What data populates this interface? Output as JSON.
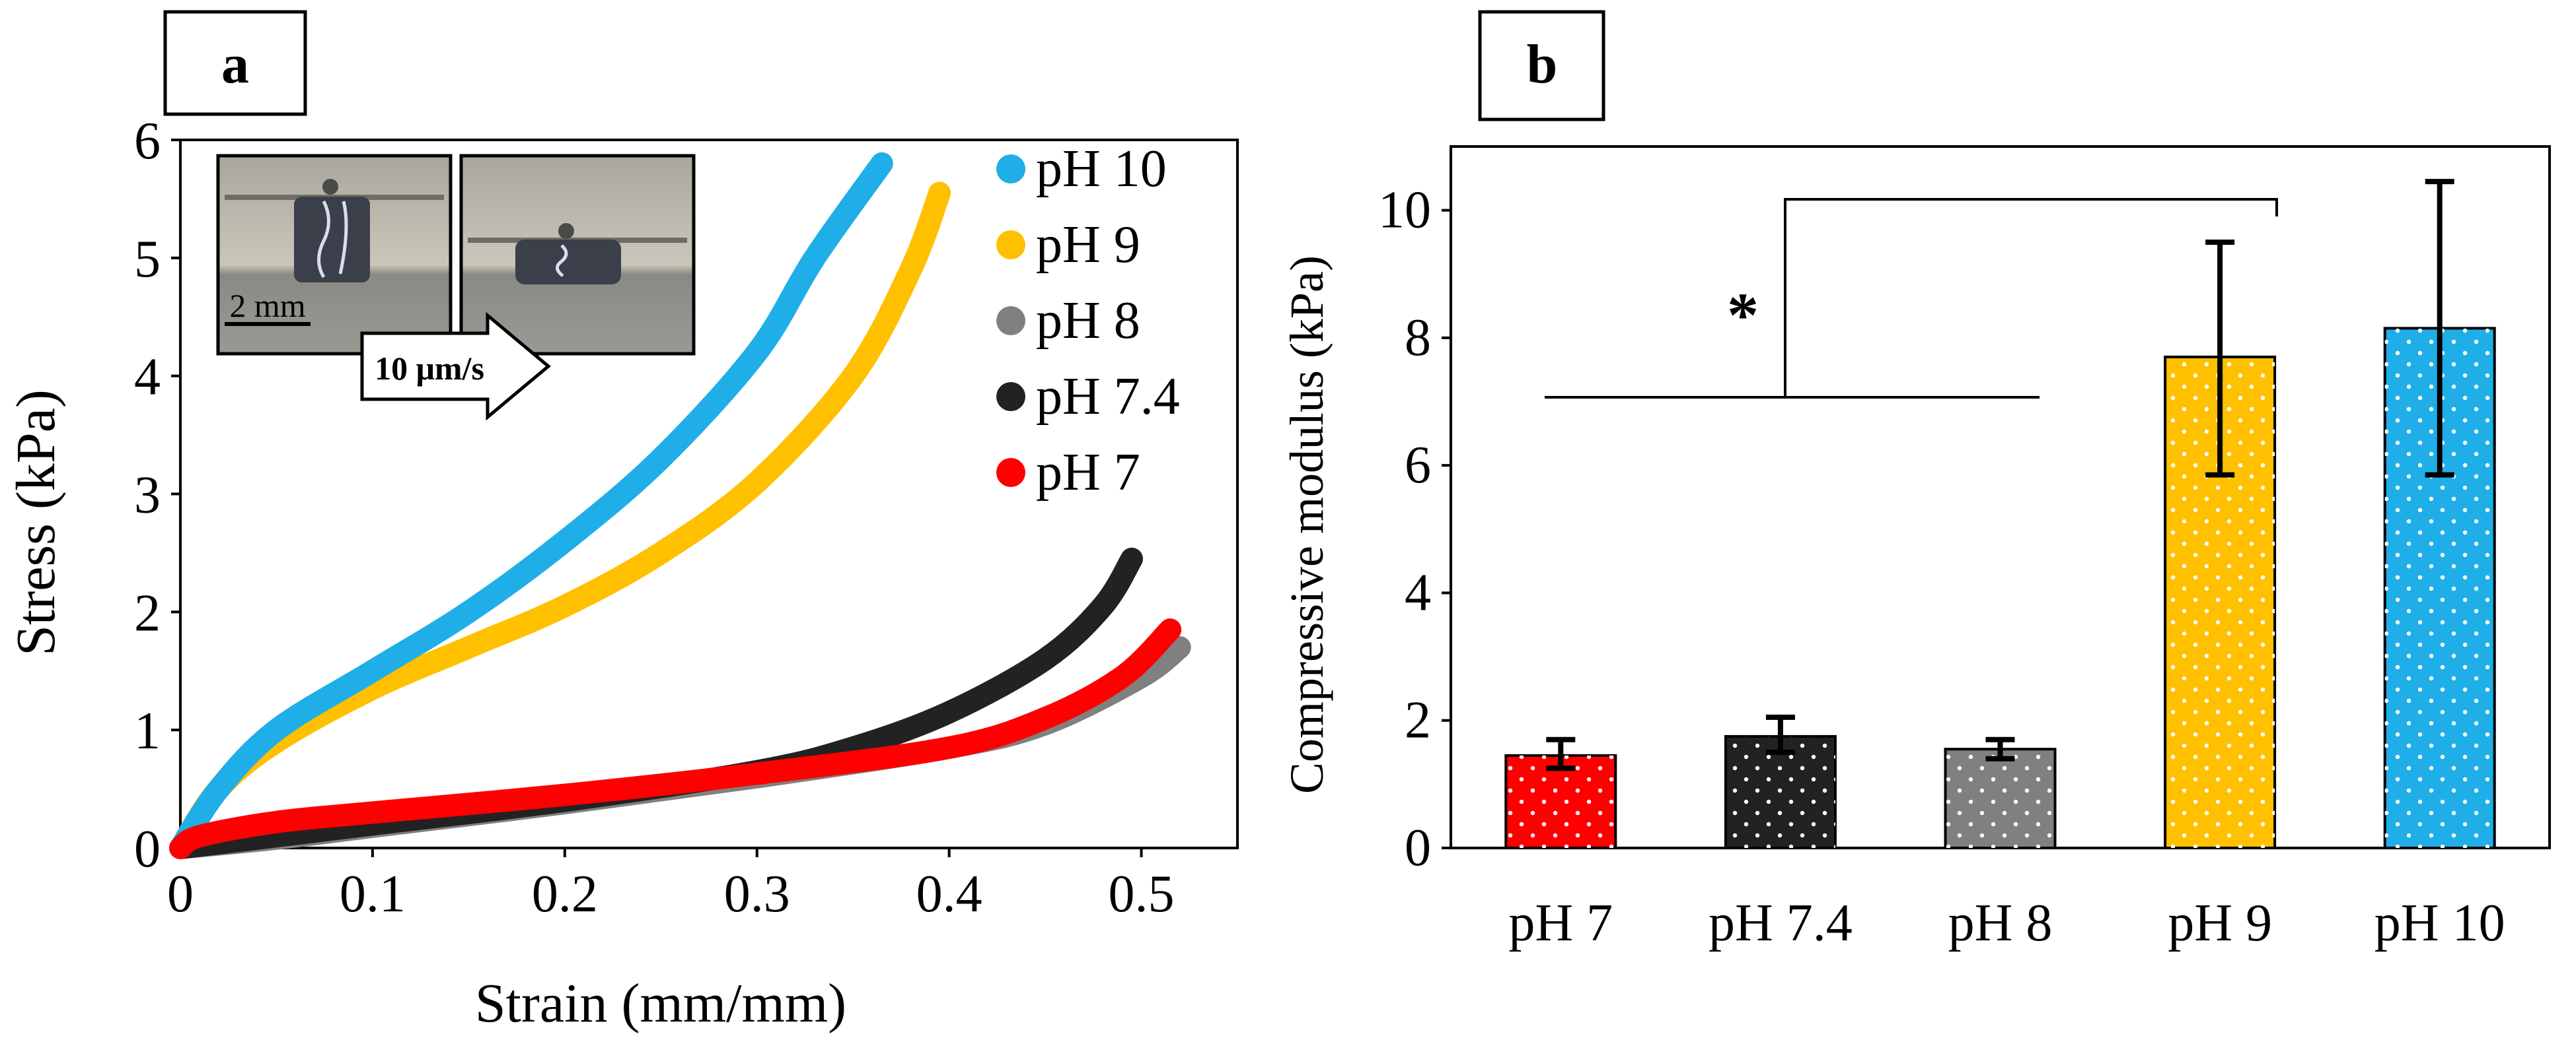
{
  "chart_data": [
    {
      "type": "scatter",
      "panel_label": "a",
      "xlabel": "Strain (mm/mm)",
      "ylabel": "Stress (kPa)",
      "xlim": [
        0,
        0.55
      ],
      "ylim": [
        0,
        6
      ],
      "x_ticks": [
        "0",
        "0.1",
        "0.2",
        "0.3",
        "0.4",
        "0.5"
      ],
      "y_ticks": [
        "0",
        "1",
        "2",
        "3",
        "4",
        "5",
        "6"
      ],
      "legend_position": "top-right",
      "inset": {
        "scale_label": "2 mm",
        "rate_label": "10 μm/s"
      },
      "series": [
        {
          "name": "pH 10",
          "color": "#1FAEE8",
          "x": [
            0,
            0.02,
            0.05,
            0.1,
            0.15,
            0.2,
            0.25,
            0.3,
            0.33,
            0.365
          ],
          "y": [
            0,
            0.5,
            1.0,
            1.5,
            2.0,
            2.6,
            3.3,
            4.2,
            5.0,
            5.8
          ]
        },
        {
          "name": "pH 9",
          "color": "#FFC000",
          "x": [
            0,
            0.02,
            0.05,
            0.1,
            0.15,
            0.2,
            0.25,
            0.3,
            0.35,
            0.38,
            0.395
          ],
          "y": [
            0,
            0.5,
            0.9,
            1.35,
            1.7,
            2.05,
            2.5,
            3.1,
            4.0,
            4.9,
            5.55
          ]
        },
        {
          "name": "pH 8",
          "color": "#808080",
          "x": [
            0,
            0.05,
            0.1,
            0.2,
            0.3,
            0.4,
            0.45,
            0.5,
            0.52
          ],
          "y": [
            0,
            0.08,
            0.18,
            0.38,
            0.6,
            0.85,
            1.05,
            1.45,
            1.7
          ]
        },
        {
          "name": "pH 7.4",
          "color": "#222222",
          "x": [
            0,
            0.05,
            0.1,
            0.2,
            0.3,
            0.35,
            0.4,
            0.45,
            0.48,
            0.495
          ],
          "y": [
            0,
            0.1,
            0.2,
            0.4,
            0.65,
            0.85,
            1.15,
            1.6,
            2.05,
            2.45
          ]
        },
        {
          "name": "pH 7",
          "color": "#FF0000",
          "x": [
            0,
            0.01,
            0.05,
            0.1,
            0.2,
            0.3,
            0.4,
            0.45,
            0.49,
            0.515
          ],
          "y": [
            0,
            0.1,
            0.22,
            0.3,
            0.45,
            0.63,
            0.85,
            1.1,
            1.45,
            1.85
          ]
        }
      ]
    },
    {
      "type": "bar",
      "panel_label": "b",
      "xlabel": "",
      "ylabel": "Compressive modulus (kPa)",
      "ylim": [
        0,
        11
      ],
      "y_ticks": [
        "0",
        "2",
        "4",
        "6",
        "8",
        "10"
      ],
      "categories": [
        "pH 7",
        "pH 7.4",
        "pH 8",
        "pH 9",
        "pH 10"
      ],
      "values": [
        1.45,
        1.75,
        1.55,
        7.7,
        8.15
      ],
      "error_low": [
        1.25,
        1.5,
        1.4,
        5.85,
        5.85
      ],
      "error_high": [
        1.7,
        2.05,
        1.7,
        9.5,
        10.45
      ],
      "colors": [
        "#FF0000",
        "#222222",
        "#808080",
        "#FFC000",
        "#1FAEE8"
      ],
      "significance_label": "*"
    }
  ]
}
